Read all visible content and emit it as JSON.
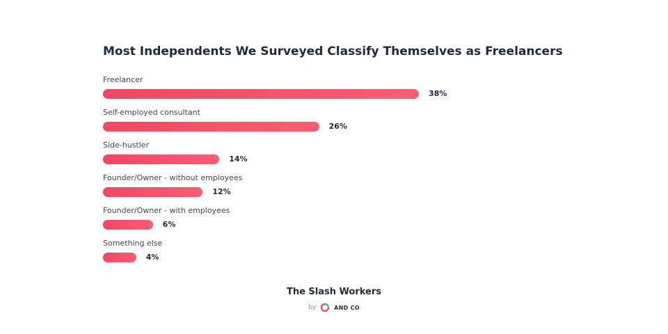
{
  "chart_data": {
    "type": "bar",
    "title": "Most Independents We Surveyed Classify Themselves as Freelancers",
    "categories": [
      "Freelancer",
      "Self-employed consultant",
      "Side-hustler",
      "Founder/Owner - without employees",
      "Founder/Owner - with employees",
      "Something else"
    ],
    "values": [
      38,
      26,
      14,
      12,
      6,
      4
    ],
    "value_labels": [
      "38%",
      "26%",
      "14%",
      "12%",
      "6%",
      "4%"
    ],
    "xlim": [
      0,
      38
    ],
    "orientation": "horizontal",
    "grid": false,
    "legend": "none",
    "bar_color": "#f24760"
  },
  "footer": {
    "title": "The Slash Workers",
    "by_label": "by",
    "brand_name": "AND CO",
    "brand_colors": [
      "#ff4a5e",
      "#2ec4a8"
    ]
  }
}
